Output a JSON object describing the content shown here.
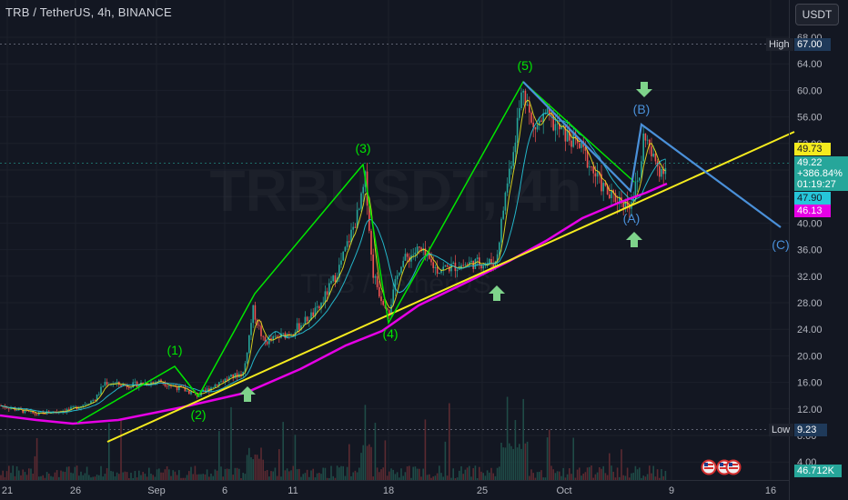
{
  "header": {
    "symbol": "TRB / TetherUS, 4h, BINANCE",
    "currency_button": "USDT",
    "watermark_main": "TRBUSDT, 4h",
    "watermark_sub": "TRB / TetherUS"
  },
  "price_axis": {
    "ticks": [
      "68.00",
      "64.00",
      "60.00",
      "56.00",
      "52.00",
      "48.00",
      "44.00",
      "40.00",
      "36.00",
      "32.00",
      "28.00",
      "24.00",
      "20.00",
      "16.00",
      "12.00",
      "8.00",
      "4.00"
    ],
    "high_label": "High",
    "high_value": "67.00",
    "low_label": "Low",
    "low_value": "9.23",
    "last_price": "49.22",
    "change": "+386.84%",
    "countdown": "01:19:27",
    "ma_yellow_value": "49.73",
    "ma_teal_value": "47.90",
    "ma_magenta_value": "46.13",
    "volume_value": "46.712K"
  },
  "time_axis": {
    "labels": [
      "21",
      "26",
      "Sep",
      "6",
      "11",
      "18",
      "25",
      "Oct",
      "9",
      "16"
    ]
  },
  "waves": {
    "w1": "(1)",
    "w2": "(2)",
    "w3": "(3)",
    "w4": "(4)",
    "w5": "(5)",
    "wA": "(A)",
    "wB": "(B)",
    "wC": "(C)"
  },
  "colors": {
    "background": "#131722",
    "up": "#26a69a",
    "down": "#ef5350",
    "impulse": "#00e600",
    "correction": "#4a90d9",
    "trendline": "#f5eb1e",
    "ma_long": "#e600e6",
    "ma_yellow": "#f5eb1e",
    "ma_teal": "#26c6da",
    "arrow": "#7ed38b"
  },
  "chart_data": {
    "type": "candlestick",
    "symbol": "TRB / TetherUS",
    "interval": "4h",
    "exchange": "BINANCE",
    "y_axis_range": [
      4,
      70
    ],
    "high": 67.0,
    "low": 9.23,
    "last": 49.22,
    "change_pct": 386.84,
    "elliott_wave_points": [
      {
        "label": "(1)",
        "date": "Aug 31",
        "price": 19.0
      },
      {
        "label": "(2)",
        "date": "Sep 4",
        "price": 13.0
      },
      {
        "label": "(3)",
        "date": "Sep 16",
        "price": 47.5
      },
      {
        "label": "(4)",
        "date": "Sep 18",
        "price": 26.0
      },
      {
        "label": "(5)",
        "date": "Sep 28",
        "price": 61.5
      },
      {
        "label": "(A)",
        "date": "Oct 6",
        "price": 43.0
      },
      {
        "label": "(B)",
        "date": "Oct 7",
        "price": 54.5
      },
      {
        "label": "(C)",
        "date": "Oct 18",
        "price": 40.0
      }
    ],
    "moving_averages": [
      {
        "color": "yellow",
        "value": 49.73
      },
      {
        "color": "teal",
        "value": 47.9
      },
      {
        "color": "magenta",
        "value": 46.13
      }
    ],
    "volume_last": "46.712K"
  }
}
